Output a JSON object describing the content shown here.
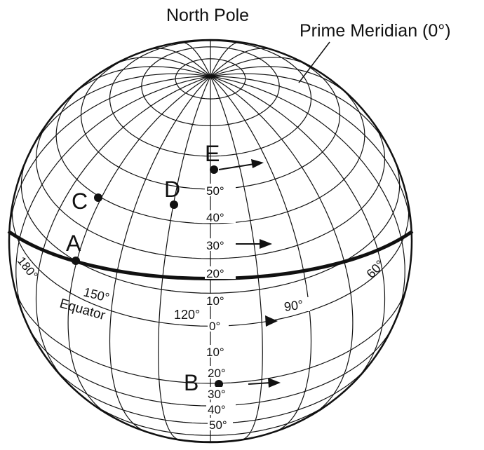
{
  "title_labels": {
    "north_pole": "North Pole",
    "prime_meridian": "Prime Meridian (0°)",
    "equator": "Equator"
  },
  "points": {
    "A": "A",
    "B": "B",
    "C": "C",
    "D": "D",
    "E": "E"
  },
  "latitude_labels": {
    "n50": "50°",
    "n40": "40°",
    "n30": "30°",
    "n20": "20°",
    "n10": "10°",
    "eq": "0°",
    "s10": "10°",
    "s20": "20°",
    "s30": "30°",
    "s40": "40°",
    "s50": "50°"
  },
  "longitude_labels": {
    "l180": "180°",
    "l150": "150°",
    "l120": "120°",
    "l90": "90°",
    "l60": "60°"
  },
  "colors": {
    "ink": "#111111",
    "background": "#ffffff"
  }
}
